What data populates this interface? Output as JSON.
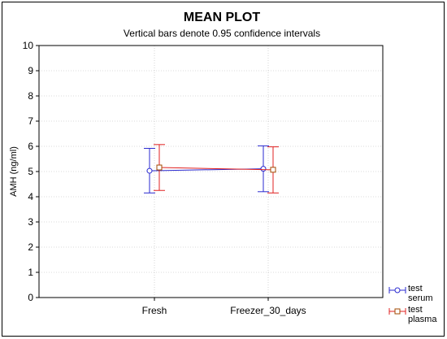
{
  "chart_data": {
    "type": "line",
    "title": "MEAN PLOT",
    "subtitle": "Vertical bars denote 0.95 confidence intervals",
    "xlabel": "",
    "ylabel": "AMH (ng/ml)",
    "ylim": [
      0,
      10
    ],
    "yticks": [
      "0",
      "1",
      "2",
      "3",
      "4",
      "5",
      "6",
      "7",
      "8",
      "9",
      "10"
    ],
    "categories": [
      "Fresh",
      "Freezer_30_days"
    ],
    "grid": true,
    "legend_position": "bottom-right",
    "series": [
      {
        "name": "test serum",
        "name_lines": [
          "test",
          "serum"
        ],
        "color": "#2a2ad0",
        "marker": "circle",
        "values": [
          5.03,
          5.11
        ],
        "ci_low": [
          4.15,
          4.2
        ],
        "ci_high": [
          5.92,
          6.02
        ]
      },
      {
        "name": "test plasma",
        "name_lines": [
          "test",
          "plasma"
        ],
        "color": "#e02020",
        "marker_edge": "#a04a00",
        "marker": "square",
        "values": [
          5.16,
          5.07
        ],
        "ci_low": [
          4.25,
          4.15
        ],
        "ci_high": [
          6.07,
          5.98
        ]
      }
    ]
  }
}
